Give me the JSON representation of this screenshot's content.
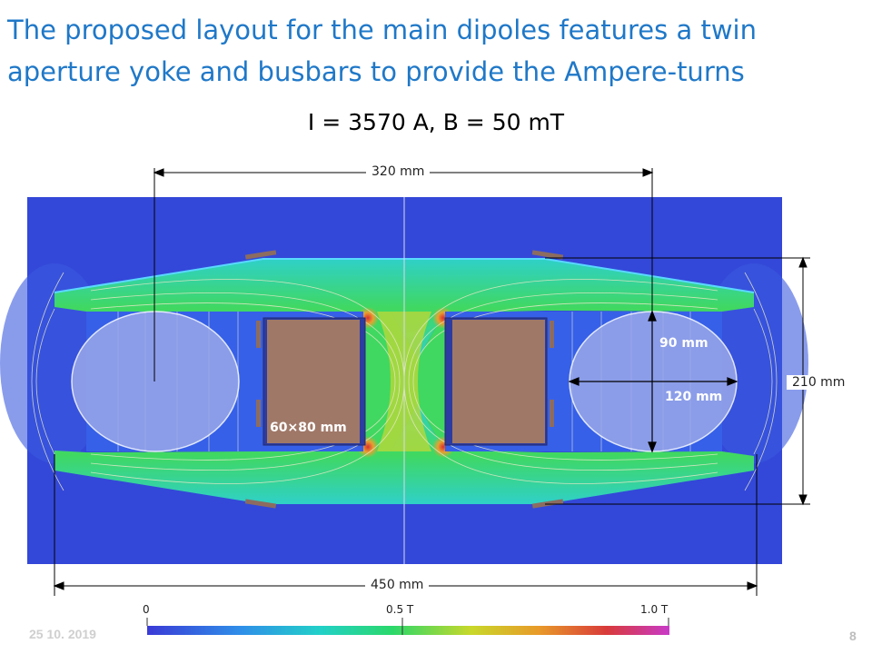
{
  "slide": {
    "title": "The proposed layout for the main dipoles features a twin aperture yoke and busbars to provide the Ampere-turns",
    "subtitle": "I = 3570 A, B = 50 mT",
    "footer_date": "25 10. 2019",
    "page_number": "8"
  },
  "dimensions": {
    "width_320": "320 mm",
    "height_210": "210 mm",
    "gap_90": "90 mm",
    "gap_120": "120 mm",
    "busbar": "60×80 mm",
    "width_450": "450 mm"
  },
  "colorscale": {
    "min_label": "0",
    "mid_label": "0.5 T",
    "max_label": "1.0 T",
    "colors": [
      "#3a3ad6",
      "#2f8fe8",
      "#22d0c8",
      "#2bd86a",
      "#c8d82a",
      "#e89a2a",
      "#d83a3a",
      "#c83ac8"
    ]
  },
  "colors": {
    "background_field": "#3348d8",
    "yoke_high": "#3ad26a",
    "busbar_fill": "#a07868",
    "aperture_fill": "#8a9ae8"
  }
}
